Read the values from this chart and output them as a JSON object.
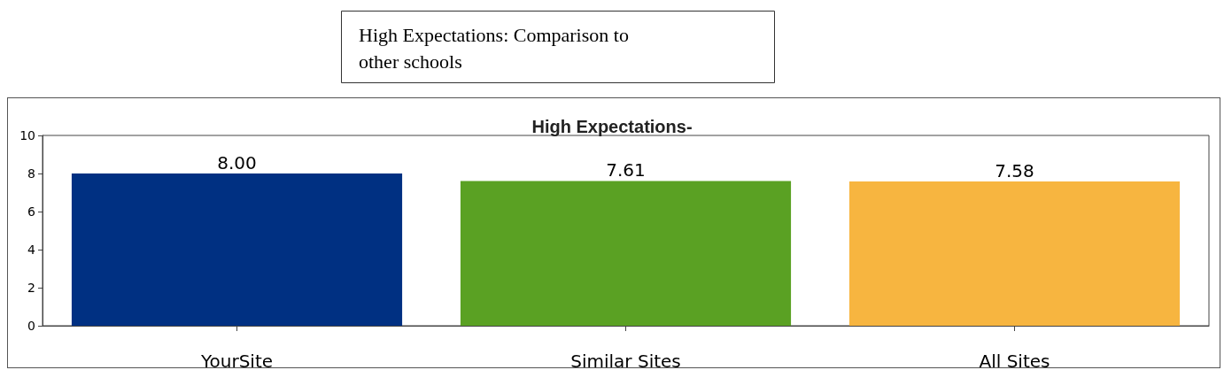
{
  "chart_data": {
    "type": "bar",
    "title": "High Expectations: Comparison to\nother schools",
    "subtitle": "High Expectations-",
    "categories": [
      "YourSite",
      "Similar Sites",
      "All Sites"
    ],
    "values": [
      8.0,
      7.61,
      7.58
    ],
    "value_labels": [
      "8.00",
      "7.61",
      "7.58"
    ],
    "colors": [
      "#003082",
      "#5aa123",
      "#f7b540"
    ],
    "ylim": [
      0,
      10
    ],
    "yticks": [
      0,
      2,
      4,
      6,
      8,
      10
    ],
    "grid": false
  }
}
